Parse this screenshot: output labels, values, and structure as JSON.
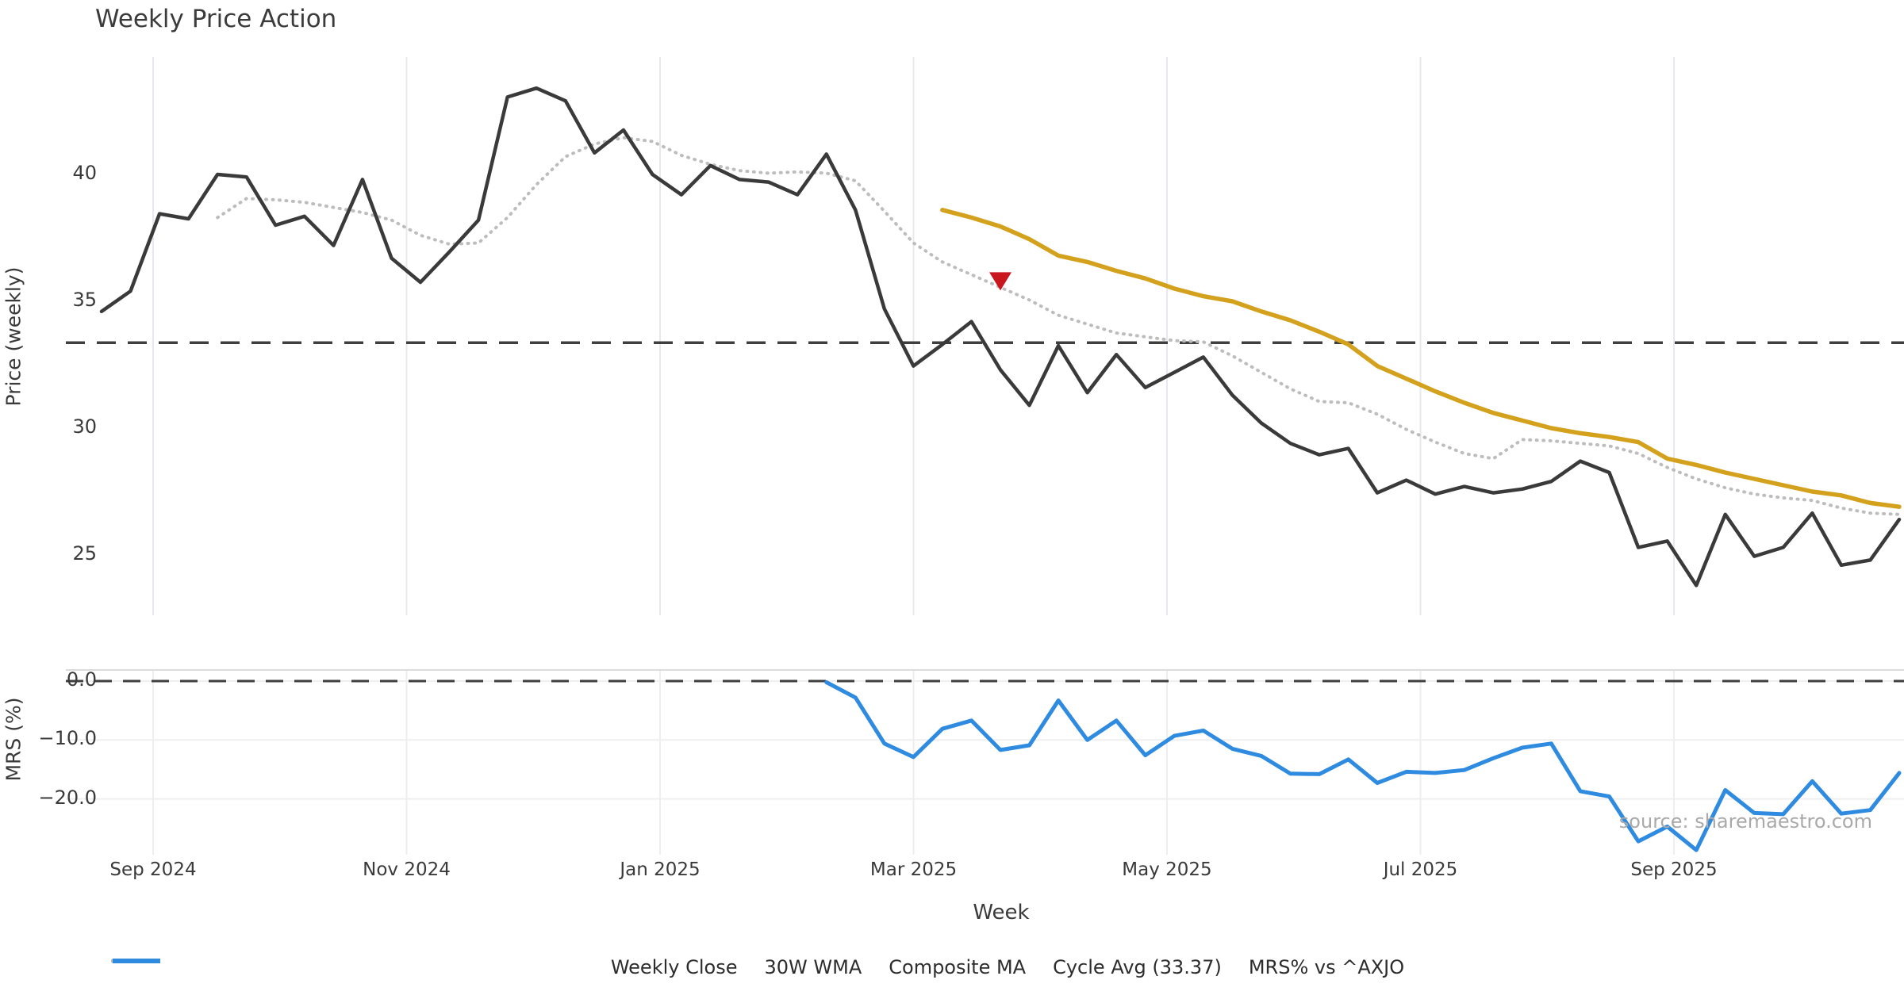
{
  "title": "Weekly Price Action",
  "watermark": "source: sharemaestro.com",
  "chart_data": {
    "type": "line",
    "title": "Weekly Price Action",
    "xlabel": "Week",
    "x_tick_labels": [
      "Sep 2024",
      "Nov 2024",
      "Jan 2025",
      "Mar 2025",
      "May 2025",
      "Jul 2025",
      "Sep 2025"
    ],
    "x_frequency": "weekly",
    "x_range_note": "63 weekly points from mid-Aug 2024 to late Oct 2025",
    "panels": [
      {
        "name": "price",
        "ylabel": "Price (weekly)",
        "ytick_labels": [
          "40",
          "35",
          "30",
          "25"
        ],
        "yticks": [
          40,
          35,
          30,
          25
        ],
        "ylim": [
          22.6,
          44.5
        ],
        "grid": "vertical-only",
        "series": [
          {
            "name": "Weekly Close",
            "color": "#3a3a3a",
            "style": "solid",
            "start_index": 0,
            "values": [
              34.6,
              35.4,
              38.45,
              38.25,
              40.0,
              39.9,
              38.0,
              38.35,
              37.2,
              39.8,
              36.7,
              35.75,
              36.95,
              38.2,
              43.05,
              43.4,
              42.9,
              40.85,
              41.75,
              40.0,
              39.2,
              40.35,
              39.8,
              39.7,
              39.2,
              40.8,
              38.6,
              34.7,
              32.45,
              33.3,
              34.2,
              32.3,
              30.9,
              33.25,
              31.4,
              32.9,
              31.6,
              32.2,
              32.8,
              31.3,
              30.2,
              29.4,
              28.95,
              29.2,
              27.45,
              27.95,
              27.4,
              27.7,
              27.45,
              27.6,
              27.9,
              28.7,
              28.25,
              25.3,
              25.55,
              23.8,
              26.6,
              24.95,
              25.3,
              26.65,
              24.6,
              24.8,
              26.4
            ]
          },
          {
            "name": "30W WMA",
            "color": "#d4a11d",
            "style": "solid",
            "start_index": 29,
            "values": [
              38.6,
              38.3,
              37.95,
              37.45,
              36.8,
              36.55,
              36.2,
              35.9,
              35.5,
              35.2,
              35.0,
              34.6,
              34.25,
              33.8,
              33.3,
              32.45,
              31.95,
              31.45,
              31.0,
              30.6,
              30.3,
              30.0,
              29.8,
              29.65,
              29.45,
              28.8,
              28.55,
              28.25,
              28.0,
              27.75,
              27.5,
              27.35,
              27.05,
              26.9
            ]
          },
          {
            "name": "Composite MA",
            "color": "#bdbdbd",
            "style": "dotted",
            "start_index": 4,
            "values": [
              38.3,
              39.05,
              39.0,
              38.9,
              38.7,
              38.5,
              38.2,
              37.6,
              37.25,
              37.3,
              38.3,
              39.6,
              40.7,
              41.2,
              41.45,
              41.3,
              40.75,
              40.4,
              40.15,
              40.05,
              40.1,
              40.05,
              39.75,
              38.55,
              37.3,
              36.55,
              36.05,
              35.55,
              35.05,
              34.45,
              34.1,
              33.75,
              33.6,
              33.45,
              33.4,
              32.85,
              32.2,
              31.55,
              31.05,
              31.0,
              30.55,
              29.95,
              29.45,
              29.0,
              28.8,
              29.55,
              29.5,
              29.4,
              29.3,
              29.0,
              28.45,
              28.0,
              27.65,
              27.4,
              27.25,
              27.15,
              26.85,
              26.65,
              26.6
            ]
          },
          {
            "name": "Cycle Avg (33.37)",
            "color": "#3f3f3f",
            "style": "dashed",
            "type": "hline",
            "value": 33.37
          }
        ],
        "marker": {
          "shape": "triangle-down",
          "color": "#c9181d",
          "index": 31,
          "value": 35.8,
          "meaning": "sell/cross signal marker"
        }
      },
      {
        "name": "mrs",
        "ylabel": "MRS (%)",
        "ytick_labels": [
          "0.0",
          "−10.0",
          "−20.0"
        ],
        "yticks": [
          0,
          -10,
          -20
        ],
        "ylim": [
          -29.5,
          1.8
        ],
        "grid": "horizontal-and-vertical",
        "zero_line": {
          "style": "dashed",
          "color": "#3f3f3f",
          "value": 0
        },
        "series": [
          {
            "name": "MRS% vs ^AXJO",
            "color": "#2e8be0",
            "style": "solid",
            "start_index": 25,
            "values": [
              -0.2,
              -2.8,
              -10.6,
              -12.9,
              -8.1,
              -6.7,
              -11.7,
              -10.9,
              -3.3,
              -10.0,
              -6.7,
              -12.6,
              -9.3,
              -8.4,
              -11.5,
              -12.7,
              -15.7,
              -15.8,
              -13.3,
              -17.3,
              -15.4,
              -15.6,
              -15.1,
              -13.1,
              -11.3,
              -10.6,
              -18.7,
              -19.6,
              -27.2,
              -24.7,
              -28.7,
              -18.5,
              -22.4,
              -22.6,
              -17.0,
              -22.5,
              -21.9,
              -15.6
            ]
          }
        ]
      }
    ],
    "legend": {
      "position": "bottom-center",
      "items": [
        {
          "label": "Weekly Close",
          "color": "#3a3a3a",
          "style": "solid"
        },
        {
          "label": "30W WMA",
          "color": "#d4a11d",
          "style": "solid"
        },
        {
          "label": "Composite MA",
          "color": "#bdbdbd",
          "style": "dotted"
        },
        {
          "label": "Cycle Avg (33.37)",
          "color": "#3f3f3f",
          "style": "dashed"
        },
        {
          "label": "MRS% vs ^AXJO",
          "color": "#2e8be0",
          "style": "solid"
        }
      ]
    }
  }
}
